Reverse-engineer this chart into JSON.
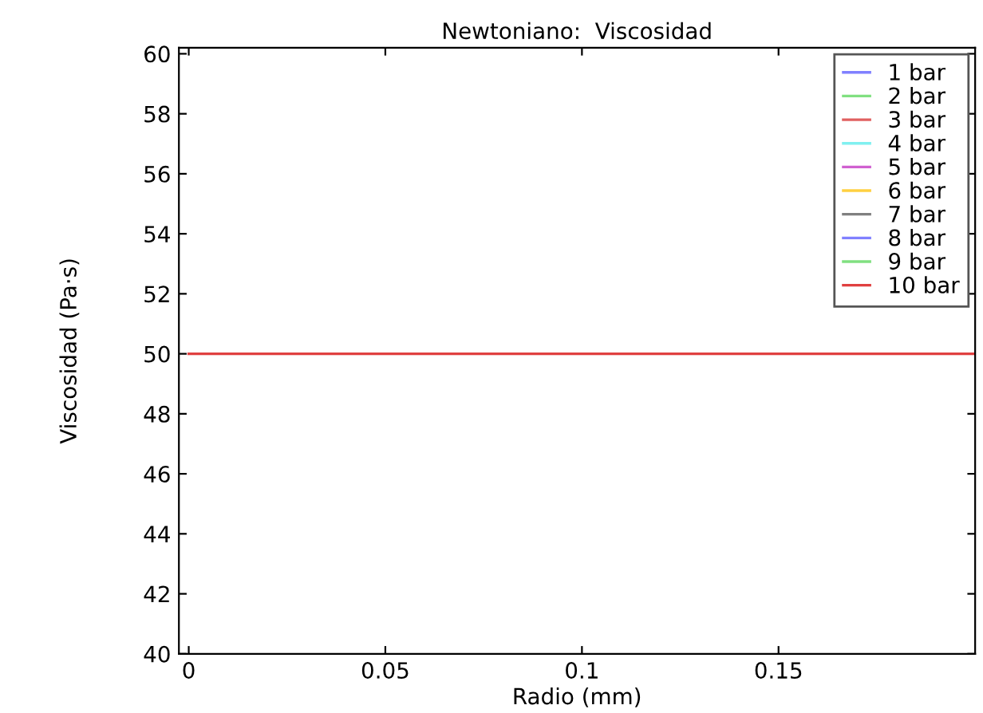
{
  "chart_data": {
    "type": "line",
    "title": "Newtoniano:  Viscosidad",
    "xlabel": "Radio (mm)",
    "ylabel": "Viscosidad (Pa·s)",
    "x": [
      0,
      0.2
    ],
    "series": [
      {
        "name": "1 bar",
        "color": "#8080ff",
        "values": [
          null,
          null
        ]
      },
      {
        "name": "2 bar",
        "color": "#80e080",
        "values": [
          null,
          null
        ]
      },
      {
        "name": "3 bar",
        "color": "#e06060",
        "values": [
          null,
          null
        ]
      },
      {
        "name": "4 bar",
        "color": "#80f0f0",
        "values": [
          null,
          null
        ]
      },
      {
        "name": "5 bar",
        "color": "#d060d0",
        "values": [
          null,
          null
        ]
      },
      {
        "name": "6 bar",
        "color": "#ffd040",
        "values": [
          null,
          null
        ]
      },
      {
        "name": "7 bar",
        "color": "#808080",
        "values": [
          null,
          null
        ]
      },
      {
        "name": "8 bar",
        "color": "#8080ff",
        "values": [
          null,
          null
        ]
      },
      {
        "name": "9 bar",
        "color": "#80e080",
        "values": [
          null,
          null
        ]
      },
      {
        "name": "10 bar",
        "color": "#e04040",
        "values": [
          50,
          50
        ]
      }
    ],
    "xlim": [
      -0.0025,
      0.2
    ],
    "xticks": [
      0,
      0.05,
      0.1,
      0.15
    ],
    "ylim": [
      40,
      60.2
    ],
    "yticks": [
      40,
      42,
      44,
      46,
      48,
      50,
      52,
      54,
      56,
      58,
      60
    ],
    "grid": false,
    "legend": "top right",
    "marker": "none",
    "line_style": "solid"
  }
}
